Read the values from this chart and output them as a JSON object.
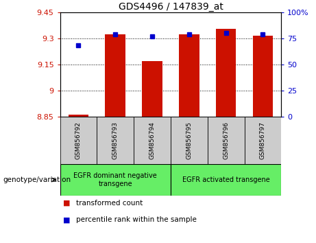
{
  "title": "GDS4496 / 147839_at",
  "samples": [
    "GSM856792",
    "GSM856793",
    "GSM856794",
    "GSM856795",
    "GSM856796",
    "GSM856797"
  ],
  "red_values": [
    8.862,
    9.322,
    9.168,
    9.322,
    9.355,
    9.315
  ],
  "blue_values": [
    68,
    79,
    77,
    79,
    80,
    79
  ],
  "ylim_left": [
    8.85,
    9.45
  ],
  "ylim_right": [
    0,
    100
  ],
  "yticks_left": [
    8.85,
    9.0,
    9.15,
    9.3,
    9.45
  ],
  "ytick_labels_left": [
    "8.85",
    "9",
    "9.15",
    "9.3",
    "9.45"
  ],
  "yticks_right": [
    0,
    25,
    50,
    75,
    100
  ],
  "ytick_labels_right": [
    "0",
    "25",
    "50",
    "75",
    "100%"
  ],
  "bar_color": "#cc1100",
  "dot_color": "#0000cc",
  "bar_bottom": 8.85,
  "group1_label": "EGFR dominant negative\ntransgene",
  "group2_label": "EGFR activated transgene",
  "group_color": "#66ee66",
  "sample_box_color": "#cccccc",
  "xlabel": "genotype/variation",
  "legend_red_label": "transformed count",
  "legend_blue_label": "percentile rank within the sample",
  "background_color": "#ffffff",
  "plot_bg": "#ffffff",
  "grid_color": "#000000",
  "tick_color_left": "#cc1100",
  "tick_color_right": "#0000cc"
}
